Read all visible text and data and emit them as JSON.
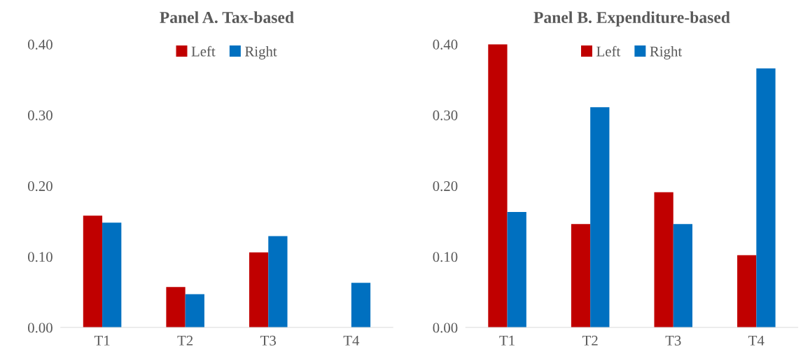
{
  "chart_data": [
    {
      "type": "bar",
      "title": "Panel A. Tax-based",
      "categories": [
        "T1",
        "T2",
        "T3",
        "T4"
      ],
      "ylim": [
        0,
        0.4
      ],
      "yticks": [
        {
          "value": 0,
          "label": "0.00"
        },
        {
          "value": 0.1,
          "label": "0.10"
        },
        {
          "value": 0.2,
          "label": "0.20"
        },
        {
          "value": 0.3,
          "label": "0.30"
        },
        {
          "value": 0.4,
          "label": "0.40"
        }
      ],
      "grid": false,
      "legend": "top",
      "series": [
        {
          "name": "Left",
          "color": "#c00000",
          "values": [
            0.158,
            0.057,
            0.106,
            null
          ]
        },
        {
          "name": "Right",
          "color": "#0070c0",
          "values": [
            0.148,
            0.047,
            0.129,
            0.063
          ]
        }
      ]
    },
    {
      "type": "bar",
      "title": "Panel B. Expenditure-based",
      "categories": [
        "T1",
        "T2",
        "T3",
        "T4"
      ],
      "ylim": [
        0,
        0.4
      ],
      "yticks": [
        {
          "value": 0,
          "label": "0.00"
        },
        {
          "value": 0.1,
          "label": "0.10"
        },
        {
          "value": 0.2,
          "label": "0.20"
        },
        {
          "value": 0.3,
          "label": "0.30"
        },
        {
          "value": 0.4,
          "label": "0.40"
        }
      ],
      "grid": false,
      "legend": "top",
      "series": [
        {
          "name": "Left",
          "color": "#c00000",
          "values": [
            0.4,
            0.146,
            0.191,
            0.102
          ]
        },
        {
          "name": "Right",
          "color": "#0070c0",
          "values": [
            0.163,
            0.311,
            0.146,
            0.366
          ]
        }
      ]
    }
  ]
}
